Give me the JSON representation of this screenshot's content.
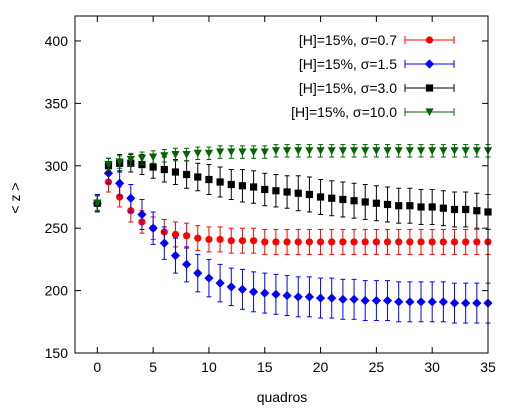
{
  "chart_data": {
    "type": "scatter",
    "title": "",
    "xlabel": "quadros",
    "ylabel": "< z >",
    "xlim": [
      -2,
      35
    ],
    "ylim": [
      150,
      420
    ],
    "xticks": [
      0,
      5,
      10,
      15,
      20,
      25,
      30,
      35
    ],
    "yticks": [
      150,
      200,
      250,
      300,
      350,
      400
    ],
    "grid": false,
    "legend_position": "top-right",
    "x": [
      0,
      1,
      2,
      3,
      4,
      5,
      6,
      7,
      8,
      9,
      10,
      11,
      12,
      13,
      14,
      15,
      16,
      17,
      18,
      19,
      20,
      21,
      22,
      23,
      24,
      25,
      26,
      27,
      28,
      29,
      30,
      31,
      32,
      33,
      34,
      35
    ],
    "series": [
      {
        "name": "[H]=15%, σ=0.7",
        "color": "#ff0000",
        "marker": "circle",
        "values": [
          270,
          287,
          275,
          264,
          255,
          250,
          247,
          245,
          244,
          242,
          241,
          241,
          240,
          240,
          240,
          239,
          239,
          239,
          239,
          239,
          239,
          239,
          239,
          239,
          239,
          239,
          239,
          239,
          239,
          239,
          239,
          239,
          239,
          239,
          239,
          239
        ],
        "errors": [
          7,
          8,
          8,
          9,
          9,
          9,
          10,
          10,
          10,
          10,
          10,
          10,
          10,
          10,
          10,
          10,
          10,
          10,
          10,
          10,
          10,
          10,
          10,
          10,
          10,
          10,
          10,
          10,
          10,
          10,
          10,
          10,
          10,
          10,
          10,
          10
        ]
      },
      {
        "name": "[H]=15%, σ=1.5",
        "color": "#0000ff",
        "marker": "diamond",
        "values": [
          270,
          294,
          286,
          274,
          261,
          250,
          238,
          228,
          221,
          214,
          210,
          206,
          203,
          201,
          199,
          198,
          197,
          196,
          195,
          195,
          194,
          194,
          193,
          193,
          192,
          192,
          192,
          191,
          191,
          191,
          191,
          191,
          190,
          190,
          190,
          190
        ],
        "errors": [
          7,
          8,
          10,
          11,
          12,
          13,
          13,
          14,
          14,
          15,
          15,
          15,
          15,
          16,
          16,
          16,
          16,
          16,
          16,
          16,
          16,
          16,
          16,
          16,
          16,
          16,
          16,
          16,
          16,
          16,
          16,
          16,
          16,
          16,
          16,
          16
        ]
      },
      {
        "name": "[H]=15%, σ=3.0",
        "color": "#000000",
        "marker": "square",
        "values": [
          270,
          300,
          302,
          302,
          301,
          299,
          297,
          295,
          293,
          291,
          289,
          287,
          285,
          284,
          283,
          281,
          280,
          279,
          278,
          277,
          275,
          274,
          273,
          272,
          271,
          270,
          269,
          268,
          268,
          267,
          267,
          266,
          265,
          265,
          264,
          263
        ],
        "errors": [
          6,
          6,
          7,
          7,
          8,
          9,
          10,
          10,
          11,
          11,
          12,
          12,
          12,
          13,
          13,
          13,
          13,
          13,
          14,
          14,
          14,
          14,
          14,
          14,
          14,
          14,
          14,
          14,
          14,
          14,
          14,
          14,
          14,
          14,
          14,
          14
        ]
      },
      {
        "name": "[H]=15%, σ=10.0",
        "color": "#006400",
        "marker": "triangle-down",
        "values": [
          270,
          301,
          303,
          305,
          306,
          307,
          308,
          309,
          309,
          310,
          310,
          311,
          311,
          311,
          311,
          311,
          312,
          312,
          312,
          312,
          312,
          312,
          312,
          312,
          312,
          312,
          312,
          312,
          312,
          312,
          312,
          312,
          312,
          312,
          312,
          312
        ],
        "errors": [
          6,
          5,
          5,
          5,
          5,
          5,
          5,
          5,
          5,
          5,
          5,
          5,
          5,
          5,
          5,
          5,
          5,
          5,
          5,
          5,
          5,
          5,
          5,
          5,
          5,
          5,
          5,
          5,
          5,
          5,
          5,
          5,
          5,
          5,
          5,
          5
        ]
      }
    ]
  }
}
